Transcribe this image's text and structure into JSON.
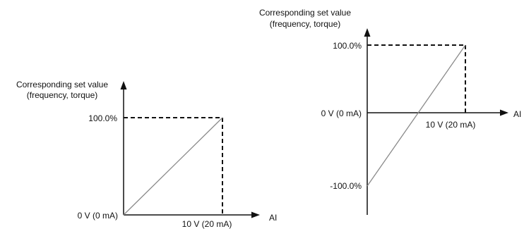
{
  "chart_data": [
    {
      "type": "line",
      "title": "",
      "ylabel_line1": "Corresponding set value",
      "ylabel_line2": "(frequency, torque)",
      "xlabel": "AI",
      "x_tick_label": "10 V (20 mA)",
      "origin_label": "0 V (0 mA)",
      "y_tick_top": "100.0%",
      "x": [
        0,
        10
      ],
      "y": [
        0,
        100
      ],
      "xlim": [
        0,
        10
      ],
      "ylim": [
        0,
        100
      ]
    },
    {
      "type": "line",
      "title": "",
      "ylabel_line1": "Corresponding set value",
      "ylabel_line2": "(frequency, torque)",
      "xlabel": "AI",
      "x_tick_label": "10 V (20 mA)",
      "origin_label": "0 V (0 mA)",
      "y_tick_top": "100.0%",
      "y_tick_bottom": "-100.0%",
      "x": [
        0,
        10
      ],
      "y": [
        -100,
        100
      ],
      "xlim": [
        0,
        10
      ],
      "ylim": [
        -100,
        100
      ]
    }
  ]
}
